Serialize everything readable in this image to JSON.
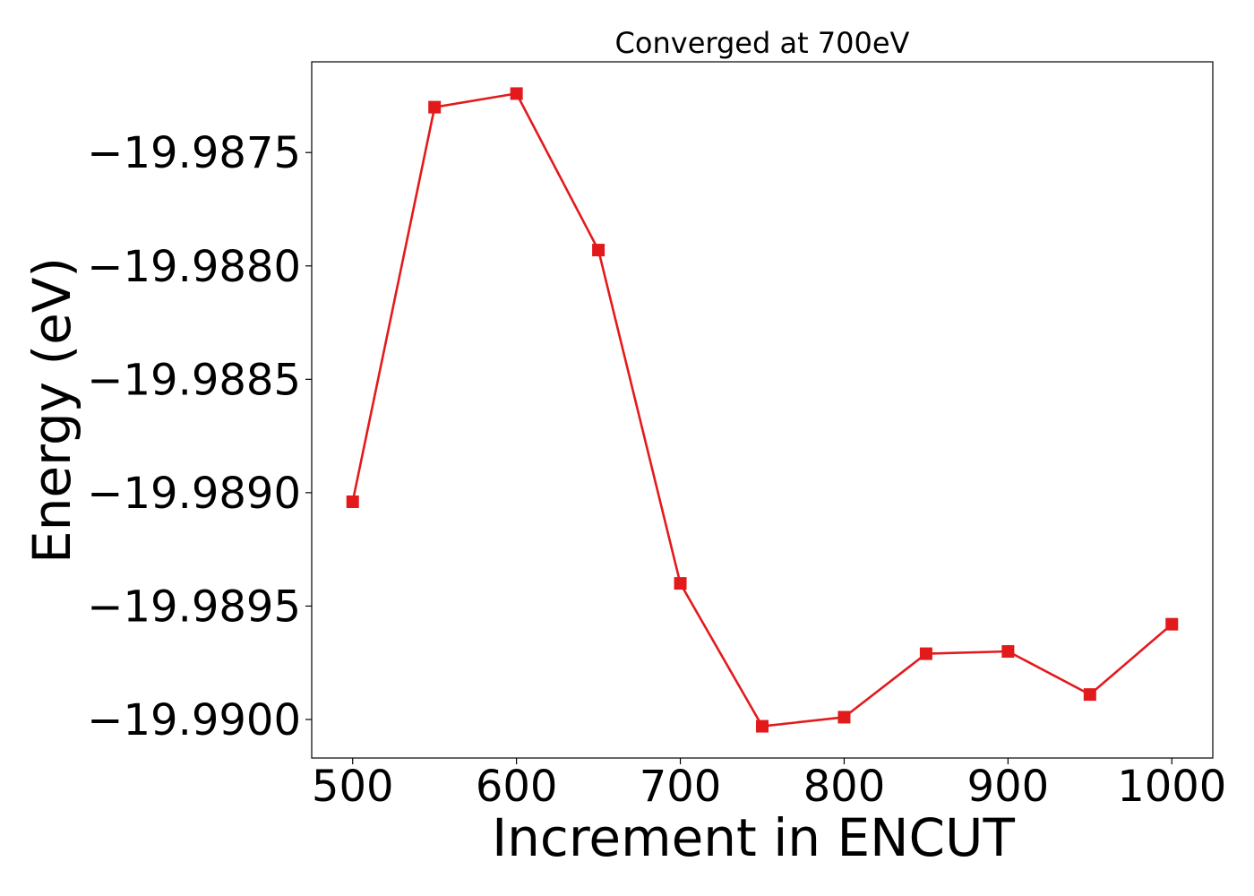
{
  "chart_data": {
    "type": "line",
    "title": "Converged at 700eV",
    "xlabel": "Increment in ENCUT",
    "ylabel": "Energy (eV)",
    "x": [
      500,
      550,
      600,
      650,
      700,
      750,
      800,
      850,
      900,
      950,
      1000
    ],
    "series": [
      {
        "values": [
          -19.98904,
          -19.9873,
          -19.98724,
          -19.98793,
          -19.9894,
          -19.99003,
          -19.98999,
          -19.98971,
          -19.9897,
          -19.98989,
          -19.98958
        ],
        "color": "#e31a1c",
        "marker": "square"
      }
    ],
    "xlim": [
      475,
      1025
    ],
    "ylim": [
      -19.99017,
      -19.9871
    ],
    "xticks": [
      500,
      600,
      700,
      800,
      900,
      1000
    ],
    "xtick_labels": [
      "500",
      "600",
      "700",
      "800",
      "900",
      "1000"
    ],
    "yticks": [
      -19.9875,
      -19.988,
      -19.9885,
      -19.989,
      -19.9895,
      -19.99
    ],
    "ytick_labels": [
      "−19.9875",
      "−19.9880",
      "−19.9885",
      "−19.9890",
      "−19.9895",
      "−19.9900"
    ],
    "grid": false,
    "legend": false
  }
}
